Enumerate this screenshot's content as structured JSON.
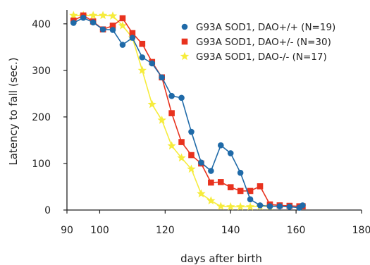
{
  "chart_data": {
    "type": "line",
    "xlabel": "days after birth",
    "ylabel": "Latency to fall (sec.)",
    "xlim": [
      90,
      180
    ],
    "ylim": [
      0,
      430
    ],
    "xticks": [
      "90",
      "100",
      "120",
      "140",
      "160",
      "180"
    ],
    "yticks": [
      "0",
      "100",
      "200",
      "300",
      "400"
    ],
    "legend_position": "top-right",
    "series": [
      {
        "name": "G93A SOD1, DAO+/+ (N=19)",
        "color": "#1f6aa8",
        "marker": "circle",
        "x": [
          92,
          95,
          98,
          101,
          104,
          107,
          110,
          113,
          116,
          119,
          122,
          125,
          128,
          131,
          134,
          137,
          140,
          143,
          146,
          149,
          152,
          155,
          158,
          161,
          162
        ],
        "y": [
          402,
          413,
          403,
          388,
          387,
          355,
          370,
          328,
          315,
          285,
          245,
          241,
          168,
          102,
          84,
          139,
          122,
          80,
          23,
          10,
          8,
          8,
          7,
          5,
          10
        ]
      },
      {
        "name": "G93A SOD1, DAO+/- (N=30)",
        "color": "#e8321e",
        "marker": "square",
        "x": [
          92,
          95,
          98,
          101,
          104,
          107,
          110,
          113,
          116,
          119,
          122,
          125,
          128,
          131,
          134,
          137,
          140,
          143,
          146,
          149,
          152,
          155,
          158,
          161,
          162
        ],
        "y": [
          407,
          418,
          405,
          388,
          396,
          412,
          380,
          357,
          318,
          285,
          208,
          146,
          118,
          100,
          59,
          60,
          49,
          41,
          41,
          51,
          12,
          10,
          9,
          8,
          8
        ]
      },
      {
        "name": "G93A SOD1, DAO-/- (N=17)",
        "color": "#f6ec3c",
        "marker": "star",
        "x": [
          92,
          95,
          98,
          101,
          104,
          107,
          110,
          113,
          116,
          119,
          122,
          125,
          128,
          131,
          134,
          137,
          140,
          143,
          146,
          149,
          152
        ],
        "y": [
          418,
          418,
          418,
          418,
          417,
          396,
          370,
          300,
          227,
          193,
          138,
          112,
          88,
          35,
          20,
          8,
          7,
          7,
          7,
          8,
          8
        ]
      }
    ]
  }
}
